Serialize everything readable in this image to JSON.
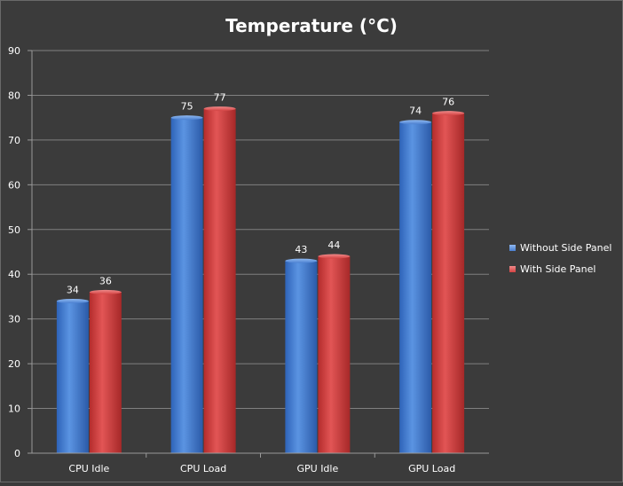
{
  "chart_data": {
    "type": "bar",
    "title": "Temperature (°C)",
    "xlabel": "",
    "ylabel": "",
    "categories": [
      "CPU Idle",
      "CPU Load",
      "GPU Idle",
      "GPU Load"
    ],
    "series": [
      {
        "name": "Without Side Panel",
        "values": [
          34,
          75,
          43,
          74
        ],
        "color": "#4a7fd0"
      },
      {
        "name": "With Side Panel",
        "values": [
          36,
          77,
          44,
          76
        ],
        "color": "#d34242"
      }
    ],
    "ylim": [
      0,
      90
    ],
    "yticks": [
      0,
      10,
      20,
      30,
      40,
      50,
      60,
      70,
      80,
      90
    ],
    "grid": true,
    "legend": "right",
    "colors": {
      "background": "#3b3b3b",
      "text": "#ffffff",
      "gridline": "#808080"
    }
  }
}
